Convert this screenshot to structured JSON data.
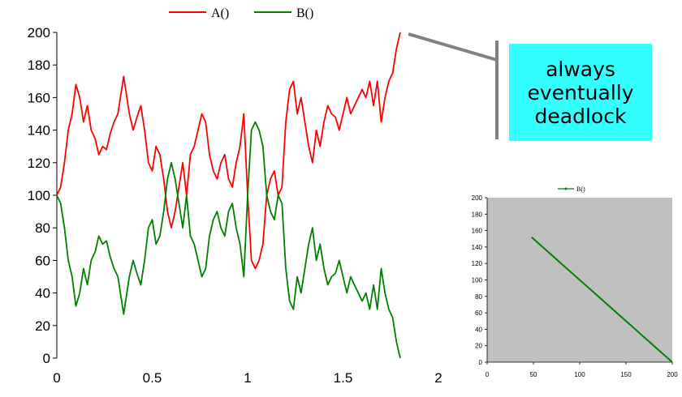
{
  "chart_data": [
    {
      "type": "line",
      "legend": [
        "A()",
        "B()"
      ],
      "legend_position": "top",
      "colors": {
        "A()": "#ff0000",
        "B()": "#008000"
      },
      "xlim": [
        0,
        2
      ],
      "ylim": [
        0,
        200
      ],
      "x_ticks": [
        "0",
        "0.5",
        "1",
        "1.5",
        "2"
      ],
      "y_ticks": [
        "0",
        "20",
        "40",
        "60",
        "80",
        "100",
        "120",
        "140",
        "160",
        "180",
        "200"
      ],
      "grid": false,
      "series": [
        {
          "name": "A()",
          "color": "#ff0000",
          "x": [
            0,
            0.02,
            0.04,
            0.06,
            0.08,
            0.1,
            0.12,
            0.14,
            0.16,
            0.18,
            0.2,
            0.22,
            0.24,
            0.26,
            0.28,
            0.3,
            0.32,
            0.35,
            0.38,
            0.4,
            0.42,
            0.44,
            0.46,
            0.48,
            0.5,
            0.52,
            0.54,
            0.56,
            0.58,
            0.6,
            0.62,
            0.64,
            0.66,
            0.68,
            0.7,
            0.72,
            0.74,
            0.76,
            0.78,
            0.8,
            0.82,
            0.84,
            0.86,
            0.88,
            0.9,
            0.92,
            0.94,
            0.96,
            0.98,
            1.0,
            1.02,
            1.04,
            1.06,
            1.08,
            1.1,
            1.12,
            1.14,
            1.16,
            1.18,
            1.2,
            1.22,
            1.24,
            1.26,
            1.28,
            1.3,
            1.32,
            1.34,
            1.36,
            1.38,
            1.4,
            1.42,
            1.44,
            1.46,
            1.48,
            1.5,
            1.52,
            1.54,
            1.56,
            1.58,
            1.6,
            1.62,
            1.64,
            1.66,
            1.68,
            1.7,
            1.72,
            1.74,
            1.76,
            1.78,
            1.8
          ],
          "values": [
            100,
            105,
            120,
            140,
            150,
            168,
            160,
            145,
            155,
            140,
            135,
            125,
            130,
            128,
            138,
            145,
            150,
            173,
            150,
            140,
            148,
            155,
            140,
            120,
            115,
            130,
            125,
            110,
            90,
            80,
            90,
            105,
            120,
            100,
            125,
            130,
            140,
            150,
            145,
            125,
            115,
            110,
            120,
            125,
            110,
            105,
            120,
            130,
            150,
            100,
            60,
            55,
            60,
            70,
            100,
            110,
            115,
            100,
            105,
            145,
            165,
            170,
            150,
            160,
            145,
            130,
            120,
            140,
            130,
            145,
            155,
            150,
            148,
            140,
            150,
            160,
            150,
            155,
            160,
            165,
            160,
            170,
            155,
            170,
            145,
            160,
            170,
            175,
            190,
            200
          ]
        },
        {
          "name": "B()",
          "color": "#008000",
          "x": [
            0,
            0.02,
            0.04,
            0.06,
            0.08,
            0.1,
            0.12,
            0.14,
            0.16,
            0.18,
            0.2,
            0.22,
            0.24,
            0.26,
            0.28,
            0.3,
            0.32,
            0.35,
            0.38,
            0.4,
            0.42,
            0.44,
            0.46,
            0.48,
            0.5,
            0.52,
            0.54,
            0.56,
            0.58,
            0.6,
            0.62,
            0.64,
            0.66,
            0.68,
            0.7,
            0.72,
            0.74,
            0.76,
            0.78,
            0.8,
            0.82,
            0.84,
            0.86,
            0.88,
            0.9,
            0.92,
            0.94,
            0.96,
            0.98,
            1.0,
            1.02,
            1.04,
            1.06,
            1.08,
            1.1,
            1.12,
            1.14,
            1.16,
            1.18,
            1.2,
            1.22,
            1.24,
            1.26,
            1.28,
            1.3,
            1.32,
            1.34,
            1.36,
            1.38,
            1.4,
            1.42,
            1.44,
            1.46,
            1.48,
            1.5,
            1.52,
            1.54,
            1.56,
            1.58,
            1.6,
            1.62,
            1.64,
            1.66,
            1.68,
            1.7,
            1.72,
            1.74,
            1.76,
            1.78,
            1.8
          ],
          "values": [
            100,
            95,
            80,
            60,
            50,
            32,
            40,
            55,
            45,
            60,
            65,
            75,
            70,
            72,
            62,
            55,
            50,
            27,
            50,
            60,
            52,
            45,
            60,
            80,
            85,
            70,
            75,
            90,
            110,
            120,
            110,
            95,
            80,
            100,
            75,
            70,
            60,
            50,
            55,
            75,
            85,
            90,
            80,
            75,
            90,
            95,
            80,
            70,
            50,
            100,
            140,
            145,
            140,
            130,
            100,
            90,
            85,
            100,
            95,
            55,
            35,
            30,
            50,
            40,
            55,
            70,
            80,
            60,
            70,
            55,
            45,
            50,
            52,
            60,
            50,
            40,
            50,
            45,
            40,
            35,
            40,
            30,
            45,
            30,
            55,
            40,
            30,
            25,
            10,
            0
          ]
        }
      ]
    },
    {
      "type": "line",
      "legend": [
        "B()"
      ],
      "legend_position": "top",
      "plot_background": "#c0c0c0",
      "xlim": [
        0,
        200
      ],
      "ylim": [
        0,
        200
      ],
      "x_ticks": [
        "0",
        "50",
        "100",
        "150",
        "200"
      ],
      "y_ticks": [
        "0",
        "20",
        "40",
        "60",
        "80",
        "100",
        "120",
        "140",
        "160",
        "180",
        "200"
      ],
      "series": [
        {
          "name": "B()",
          "color": "#008000",
          "x": [
            48,
            60,
            80,
            100,
            120,
            140,
            160,
            180,
            200
          ],
          "values": [
            152,
            140,
            120,
            100,
            80,
            60,
            40,
            20,
            0
          ]
        }
      ]
    }
  ],
  "callout": {
    "lines": [
      "always",
      "eventually",
      "deadlock"
    ],
    "background": "#33ffff",
    "border_color": "#808080"
  }
}
